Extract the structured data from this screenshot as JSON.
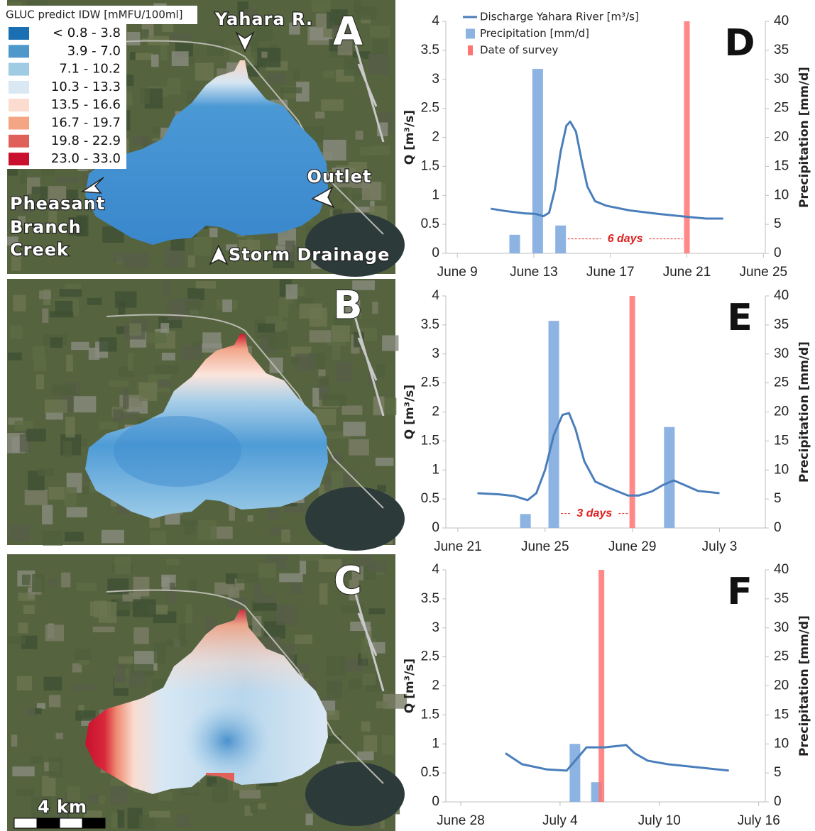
{
  "chart_data": [
    {
      "type": "combo",
      "panel_label": "D",
      "y_label": "Q [m³/s]",
      "y2_label": "Precipitation [mm/d]",
      "legend": "upper left",
      "annotation": "6 days",
      "xlim": [
        8.4,
        25.1
      ],
      "xticks": [
        {
          "value": 9,
          "label": "June 9"
        },
        {
          "value": 13,
          "label": "June 13"
        },
        {
          "value": 17,
          "label": "June 17"
        },
        {
          "value": 21,
          "label": "June 21"
        },
        {
          "value": 25,
          "label": "June 25"
        }
      ],
      "ylim": [
        0,
        4
      ],
      "yticks": [
        0,
        0.5,
        1,
        1.5,
        2,
        2.5,
        3,
        3.5,
        4
      ],
      "y2lim": [
        0,
        40
      ],
      "y2ticks": [
        0,
        5,
        10,
        15,
        20,
        25,
        30,
        35,
        40
      ],
      "series": [
        {
          "name": "Discharge Yahara River [m³/s]",
          "type": "line",
          "color": "#4a7ebb",
          "x": [
            10.75,
            11.5,
            12.5,
            13.1,
            13.5,
            13.8,
            14.1,
            14.4,
            14.7,
            14.9,
            15.2,
            15.5,
            15.8,
            16.2,
            16.8,
            18,
            19.5,
            21,
            22,
            22.9
          ],
          "values": [
            0.77,
            0.73,
            0.69,
            0.68,
            0.64,
            0.7,
            1.1,
            1.75,
            2.2,
            2.27,
            2.1,
            1.6,
            1.15,
            0.9,
            0.82,
            0.74,
            0.68,
            0.63,
            0.6,
            0.6
          ]
        },
        {
          "name": "Precipitation [mm/d]",
          "type": "bar",
          "axis": "y2",
          "color": "#8db3e2",
          "x": [
            12,
            13.2,
            14.4
          ],
          "values": [
            3.2,
            31.8,
            4.8
          ]
        },
        {
          "name": "Date of survey",
          "type": "marker",
          "axis": "y2",
          "color": "#ff7373",
          "x": [
            21
          ],
          "values": [
            40
          ]
        }
      ]
    },
    {
      "type": "combo",
      "panel_label": "E",
      "y_label": "Q [m³/s]",
      "y2_label": "Precipitation [mm/d]",
      "annotation": "3 days",
      "xlim": [
        20.45,
        35.1
      ],
      "xticks": [
        {
          "value": 21,
          "label": "June 21"
        },
        {
          "value": 25,
          "label": "June 25"
        },
        {
          "value": 29,
          "label": "June 29"
        },
        {
          "value": 33,
          "label": "July 3"
        }
      ],
      "ylim": [
        0,
        4
      ],
      "yticks": [
        0,
        0.5,
        1,
        1.5,
        2,
        2.5,
        3,
        3.5,
        4
      ],
      "y2lim": [
        0,
        40
      ],
      "y2ticks": [
        0,
        5,
        10,
        15,
        20,
        25,
        30,
        35,
        40
      ],
      "series": [
        {
          "type": "line",
          "color": "#4a7ebb",
          "x": [
            21.9,
            22.9,
            23.6,
            24.2,
            24.6,
            25.0,
            25.4,
            25.8,
            26.1,
            26.4,
            26.8,
            27.3,
            28,
            28.8,
            29.3,
            29.9,
            30.4,
            30.9,
            31.4,
            32,
            33
          ],
          "values": [
            0.6,
            0.58,
            0.55,
            0.48,
            0.6,
            1.0,
            1.6,
            1.95,
            1.98,
            1.7,
            1.15,
            0.8,
            0.68,
            0.56,
            0.56,
            0.63,
            0.74,
            0.82,
            0.74,
            0.64,
            0.6
          ]
        },
        {
          "type": "bar",
          "axis": "y2",
          "color": "#8db3e2",
          "x": [
            24.1,
            25.4,
            30.7
          ],
          "values": [
            2.4,
            35.7,
            17.4
          ]
        },
        {
          "type": "marker",
          "axis": "y2",
          "color": "#ff7373",
          "x": [
            29
          ],
          "values": [
            40
          ]
        }
      ]
    },
    {
      "type": "combo",
      "panel_label": "F",
      "y_label": "Q [m³/s]",
      "y2_label": "Precipitation [mm/d]",
      "xlim": [
        27.1,
        46.4
      ],
      "xticks": [
        {
          "value": 28,
          "label": "June 28"
        },
        {
          "value": 34,
          "label": "July 4"
        },
        {
          "value": 40,
          "label": "July 10"
        },
        {
          "value": 46,
          "label": "July 16"
        }
      ],
      "ylim": [
        0,
        4
      ],
      "yticks": [
        0,
        0.5,
        1,
        1.5,
        2,
        2.5,
        3,
        3.5,
        4
      ],
      "y2lim": [
        0,
        40
      ],
      "y2ticks": [
        0,
        5,
        10,
        15,
        20,
        25,
        30,
        35,
        40
      ],
      "series": [
        {
          "type": "line",
          "color": "#4a7ebb",
          "x": [
            30.7,
            31.7,
            33.2,
            34.4,
            35.0,
            35.6,
            36.7,
            38.0,
            38.5,
            39.3,
            40.5,
            42.2,
            44.2
          ],
          "values": [
            0.84,
            0.65,
            0.56,
            0.54,
            0.74,
            0.94,
            0.94,
            0.98,
            0.84,
            0.71,
            0.65,
            0.6,
            0.54
          ]
        },
        {
          "type": "bar",
          "axis": "y2",
          "color": "#8db3e2",
          "x": [
            34.9,
            36.2
          ],
          "values": [
            10,
            3.4
          ]
        },
        {
          "type": "marker",
          "axis": "y2",
          "color": "#ff7373",
          "x": [
            36.5
          ],
          "values": [
            40
          ]
        }
      ]
    }
  ],
  "maps": {
    "legend": {
      "title": "GLUC predict IDW [mMFU/100ml]",
      "items": [
        {
          "label": "< 0.8 -   3.8",
          "color": "#1a6fb3"
        },
        {
          "label": "3.9 -   7.0",
          "color": "#4e98cb"
        },
        {
          "label": "7.1 - 10.2",
          "color": "#9fcbe3"
        },
        {
          "label": "10.3 - 13.3",
          "color": "#d9e8f3"
        },
        {
          "label": "13.5 - 16.6",
          "color": "#fbdcce"
        },
        {
          "label": "16.7 - 19.7",
          "color": "#f4a583"
        },
        {
          "label": "19.8 - 22.9",
          "color": "#e0615a"
        },
        {
          "label": "23.0 - 33.0",
          "color": "#c8102e"
        }
      ]
    },
    "panels": [
      {
        "letter": "A"
      },
      {
        "letter": "B"
      },
      {
        "letter": "C"
      }
    ],
    "annotations": [
      "Yahara R.",
      "Outlet",
      "Pheasant",
      "Branch",
      "Creek",
      "Storm Drainage"
    ],
    "scale_label": "4 km"
  }
}
